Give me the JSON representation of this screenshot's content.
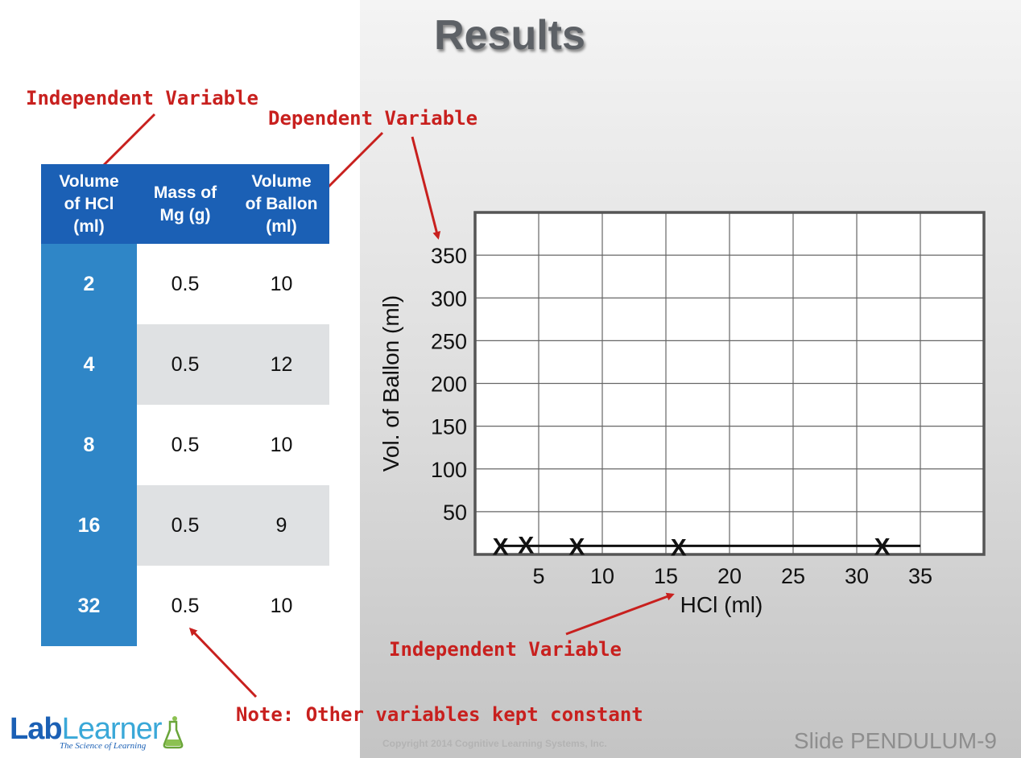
{
  "title": "Results",
  "notes": {
    "table_independent": "Independent Variable",
    "table_dependent": "Dependent Variable",
    "graph_independent": "Independent Variable",
    "constant": "Note: Other variables kept constant"
  },
  "table": {
    "headers": [
      [
        "Volume",
        "of HCl",
        "(ml)"
      ],
      [
        "Mass of",
        "Mg (g)"
      ],
      [
        "Volume",
        "of Ballon",
        "(ml)"
      ]
    ],
    "rows": [
      [
        "2",
        "0.5",
        "10"
      ],
      [
        "4",
        "0.5",
        "12"
      ],
      [
        "8",
        "0.5",
        "10"
      ],
      [
        "16",
        "0.5",
        "9"
      ],
      [
        "32",
        "0.5",
        "10"
      ]
    ]
  },
  "chart_data": {
    "type": "scatter",
    "xlabel": "HCl (ml)",
    "ylabel": "Vol. of Ballon (ml)",
    "x_ticks": [
      5,
      10,
      15,
      20,
      25,
      30,
      35
    ],
    "y_ticks": [
      50,
      100,
      150,
      200,
      250,
      300,
      350
    ],
    "xlim": [
      0,
      40
    ],
    "ylim": [
      0,
      400
    ],
    "grid": true,
    "marker": "X",
    "points": [
      {
        "x": 2,
        "y": 10
      },
      {
        "x": 4,
        "y": 12
      },
      {
        "x": 8,
        "y": 10
      },
      {
        "x": 16,
        "y": 9
      },
      {
        "x": 32,
        "y": 10
      }
    ],
    "trend_line": {
      "x": [
        2,
        35
      ],
      "y": 10
    }
  },
  "footer": {
    "logo_part1": "Lab",
    "logo_part2": "Learner",
    "logo_tagline": "The Science of Learning",
    "copyright": "Copyright 2014 Cognitive Learning Systems, Inc.",
    "slide": "Slide PENDULUM-9"
  },
  "colors": {
    "note_red": "#c8201e",
    "header_blue": "#1b60b5",
    "first_col_blue": "#2f86c7",
    "alt_row_gray": "#dfe1e3"
  }
}
